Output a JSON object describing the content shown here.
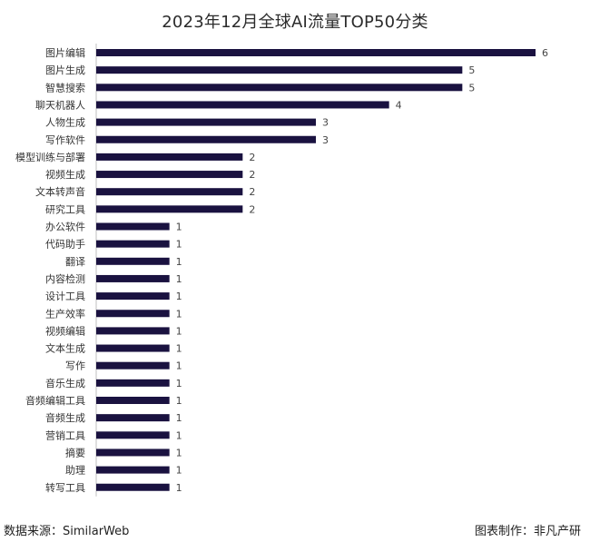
{
  "chart_data": {
    "type": "bar",
    "orientation": "horizontal",
    "title": "2023年12月全球AI流量TOP50分类",
    "categories": [
      "图片编辑",
      "图片生成",
      "智慧搜索",
      "聊天机器人",
      "人物生成",
      "写作软件",
      "模型训练与部署",
      "视频生成",
      "文本转声音",
      "研究工具",
      "办公软件",
      "代码助手",
      "翻译",
      "内容检测",
      "设计工具",
      "生产效率",
      "视频编辑",
      "文本生成",
      "写作",
      "音乐生成",
      "音频编辑工具",
      "音频生成",
      "营销工具",
      "摘要",
      "助理",
      "转写工具"
    ],
    "values": [
      6,
      5,
      5,
      4,
      3,
      3,
      2,
      2,
      2,
      2,
      1,
      1,
      1,
      1,
      1,
      1,
      1,
      1,
      1,
      1,
      1,
      1,
      1,
      1,
      1,
      1
    ],
    "xlim": [
      0,
      6
    ],
    "grid": false,
    "bar_color": "#1a1240"
  },
  "footer": {
    "source": "数据来源：SimilarWeb",
    "credit": "图表制作：非凡产研"
  }
}
